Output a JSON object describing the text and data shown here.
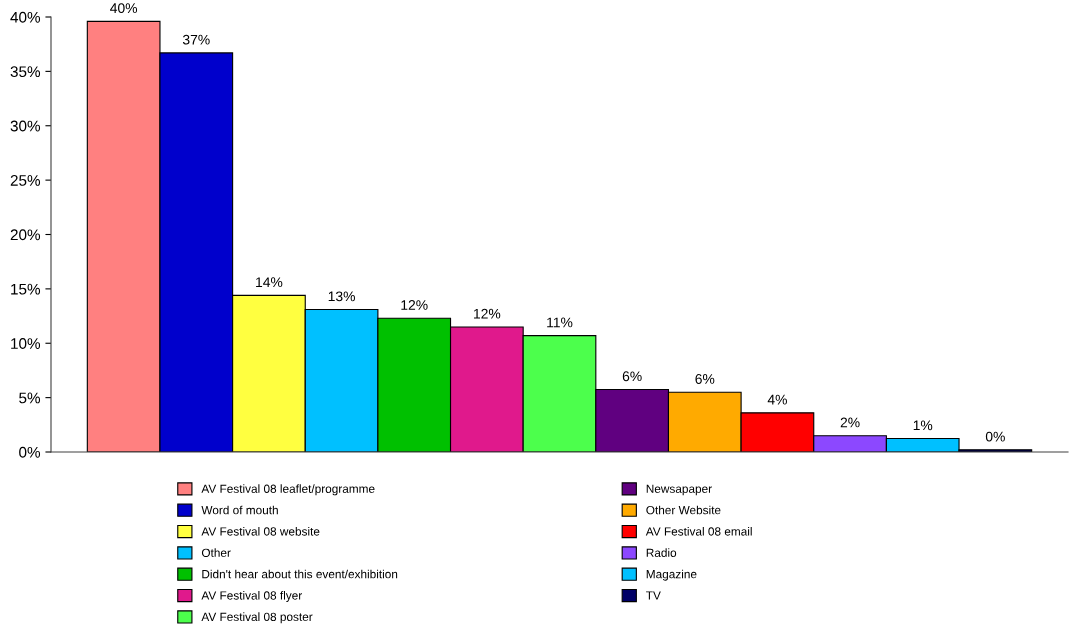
{
  "chart_data": {
    "type": "bar",
    "categories": [
      null,
      null,
      null,
      null,
      null,
      null,
      null,
      null,
      null,
      null,
      null,
      null,
      null
    ],
    "series": [
      {
        "name": "AV Festival 08 leaflet/programme",
        "color": "#ff8080",
        "values": [
          39.6,
          null,
          null,
          null,
          null,
          null,
          null,
          null,
          null,
          null,
          null,
          null,
          null
        ],
        "value_labels": [
          "40%",
          null,
          null,
          null,
          null,
          null,
          null,
          null,
          null,
          null,
          null,
          null,
          null
        ]
      },
      {
        "name": "Word of mouth",
        "color": "#0000cc",
        "values": [
          null,
          36.7,
          null,
          null,
          null,
          null,
          null,
          null,
          null,
          null,
          null,
          null,
          null
        ],
        "value_labels": [
          null,
          "37%",
          null,
          null,
          null,
          null,
          null,
          null,
          null,
          null,
          null,
          null,
          null
        ]
      },
      {
        "name": "AV Festival 08 website",
        "color": "#ffff40",
        "values": [
          null,
          null,
          14.4,
          null,
          null,
          null,
          null,
          null,
          null,
          null,
          null,
          null,
          null
        ],
        "value_labels": [
          null,
          null,
          "14%",
          null,
          null,
          null,
          null,
          null,
          null,
          null,
          null,
          null,
          null
        ]
      },
      {
        "name": "Other",
        "color": "#00c0ff",
        "values": [
          null,
          null,
          null,
          13.1,
          null,
          null,
          null,
          null,
          null,
          null,
          null,
          null,
          null
        ],
        "value_labels": [
          null,
          null,
          null,
          "13%",
          null,
          null,
          null,
          null,
          null,
          null,
          null,
          null,
          null
        ]
      },
      {
        "name": "Didn't hear about this event/exhibition",
        "color": "#00c000",
        "values": [
          null,
          null,
          null,
          null,
          12.3,
          null,
          null,
          null,
          null,
          null,
          null,
          null,
          null
        ],
        "value_labels": [
          null,
          null,
          null,
          null,
          "12%",
          null,
          null,
          null,
          null,
          null,
          null,
          null,
          null
        ]
      },
      {
        "name": "AV Festival 08 flyer",
        "color": "#e0198c",
        "values": [
          null,
          null,
          null,
          null,
          null,
          11.5,
          null,
          null,
          null,
          null,
          null,
          null,
          null
        ],
        "value_labels": [
          null,
          null,
          null,
          null,
          null,
          "12%",
          null,
          null,
          null,
          null,
          null,
          null,
          null
        ]
      },
      {
        "name": "AV Festival 08 poster",
        "color": "#4cff4c",
        "values": [
          null,
          null,
          null,
          null,
          null,
          null,
          10.7,
          null,
          null,
          null,
          null,
          null,
          null
        ],
        "value_labels": [
          null,
          null,
          null,
          null,
          null,
          null,
          "11%",
          null,
          null,
          null,
          null,
          null,
          null
        ]
      },
      {
        "name": "Newsapaper",
        "color": "#600080",
        "values": [
          null,
          null,
          null,
          null,
          null,
          null,
          null,
          5.75,
          null,
          null,
          null,
          null,
          null
        ],
        "value_labels": [
          null,
          null,
          null,
          null,
          null,
          null,
          null,
          "6%",
          null,
          null,
          null,
          null,
          null
        ]
      },
      {
        "name": "Other Website",
        "color": "#ffaa00",
        "values": [
          null,
          null,
          null,
          null,
          null,
          null,
          null,
          null,
          5.5,
          null,
          null,
          null,
          null
        ],
        "value_labels": [
          null,
          null,
          null,
          null,
          null,
          null,
          null,
          null,
          "6%",
          null,
          null,
          null,
          null
        ]
      },
      {
        "name": "AV Festival 08 email",
        "color": "#ff0000",
        "values": [
          null,
          null,
          null,
          null,
          null,
          null,
          null,
          null,
          null,
          3.6,
          null,
          null,
          null
        ],
        "value_labels": [
          null,
          null,
          null,
          null,
          null,
          null,
          null,
          null,
          null,
          "4%",
          null,
          null,
          null
        ]
      },
      {
        "name": "Radio",
        "color": "#8c48ff",
        "values": [
          null,
          null,
          null,
          null,
          null,
          null,
          null,
          null,
          null,
          null,
          1.5,
          null,
          null
        ],
        "value_labels": [
          null,
          null,
          null,
          null,
          null,
          null,
          null,
          null,
          null,
          null,
          "2%",
          null,
          null
        ]
      },
      {
        "name": "Magazine",
        "color": "#00c0ff",
        "values": [
          null,
          null,
          null,
          null,
          null,
          null,
          null,
          null,
          null,
          null,
          null,
          1.24,
          null
        ],
        "value_labels": [
          null,
          null,
          null,
          null,
          null,
          null,
          null,
          null,
          null,
          null,
          null,
          "1%",
          null
        ]
      },
      {
        "name": "TV",
        "color": "#000066",
        "values": [
          null,
          null,
          null,
          null,
          null,
          null,
          null,
          null,
          null,
          null,
          null,
          null,
          0.2
        ],
        "value_labels": [
          null,
          null,
          null,
          null,
          null,
          null,
          null,
          null,
          null,
          null,
          null,
          null,
          "0%"
        ]
      }
    ],
    "ylim": [
      0,
      40
    ],
    "yticks": [
      {
        "value": 0,
        "label": "0%"
      },
      {
        "value": 5,
        "label": "5%"
      },
      {
        "value": 10,
        "label": "10%"
      },
      {
        "value": 15,
        "label": "15%"
      },
      {
        "value": 20,
        "label": "20%"
      },
      {
        "value": 25,
        "label": "25%"
      },
      {
        "value": 30,
        "label": "30%"
      },
      {
        "value": 35,
        "label": "35%"
      },
      {
        "value": 40,
        "label": "40%"
      }
    ],
    "tick_labels": "y",
    "grid": false,
    "legend": "bottom"
  }
}
